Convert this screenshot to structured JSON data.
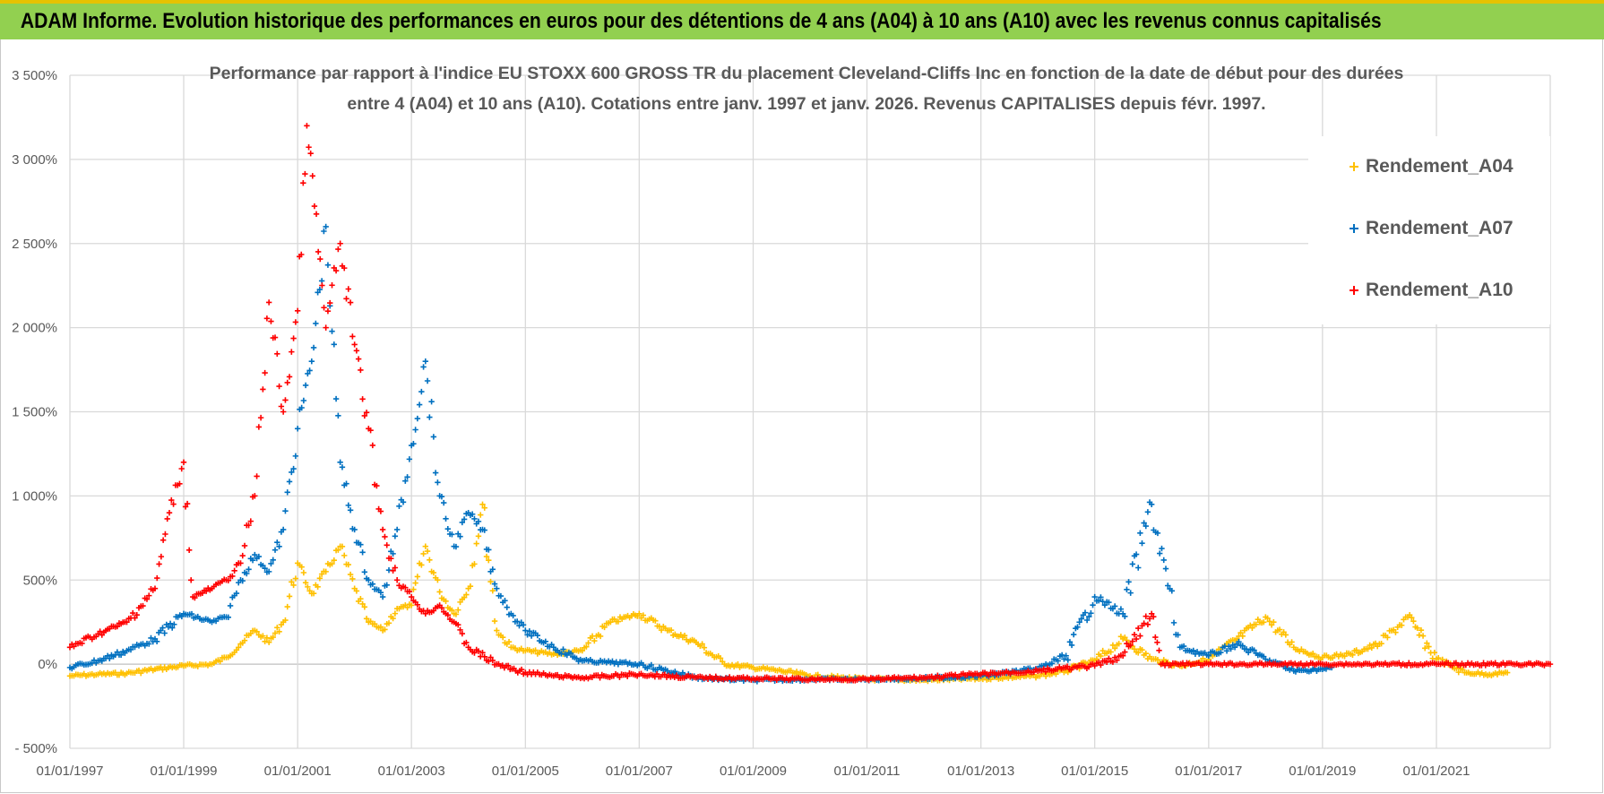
{
  "header": {
    "title": "ADAM Informe. Evolution historique des performances en euros pour des détentions de 4 ans (A04) à 10 ans (A10) avec les revenus connus capitalisés"
  },
  "chart_data": {
    "type": "scatter",
    "title_line1": "Performance par rapport à l'indice EU STOXX 600 GROSS TR  du placement Cleveland-Cliffs Inc en fonction de la date de début pour des durées",
    "title_line2": "entre 4 (A04) et 10 ans (A10).  Cotations entre janv. 1997 et janv. 2026. Revenus CAPITALISES depuis févr. 1997.",
    "x_axis": {
      "type": "date",
      "min": "1997-01-01",
      "max": "2023-01-01",
      "tick_labels": [
        "01/01/1997",
        "01/01/1999",
        "01/01/2001",
        "01/01/2003",
        "01/01/2005",
        "01/01/2007",
        "01/01/2009",
        "01/01/2011",
        "01/01/2013",
        "01/01/2015",
        "01/01/2017",
        "01/01/2019",
        "01/01/2021"
      ]
    },
    "y_axis": {
      "unit": "%",
      "min": -500,
      "max": 3500,
      "tick_labels": [
        "- 500%",
        "0%",
        "500%",
        "1 000%",
        "1 500%",
        "2 000%",
        "2 500%",
        "3 000%",
        "3 500%"
      ]
    },
    "grid": true,
    "legend_position": "top-right",
    "series": [
      {
        "name": "Rendement_A04",
        "color": "#ffc000",
        "points": [
          [
            "1997-01-01",
            -70
          ],
          [
            "1997-07-01",
            -60
          ],
          [
            "1998-01-01",
            -55
          ],
          [
            "1998-07-01",
            -30
          ],
          [
            "1999-01-01",
            -10
          ],
          [
            "1999-07-01",
            0
          ],
          [
            "1999-10-01",
            40
          ],
          [
            "2000-01-01",
            120
          ],
          [
            "2000-04-01",
            200
          ],
          [
            "2000-07-01",
            130
          ],
          [
            "2000-10-01",
            250
          ],
          [
            "2001-01-01",
            600
          ],
          [
            "2001-04-01",
            420
          ],
          [
            "2001-07-01",
            550
          ],
          [
            "2001-10-01",
            700
          ],
          [
            "2002-01-01",
            450
          ],
          [
            "2002-04-01",
            250
          ],
          [
            "2002-07-01",
            200
          ],
          [
            "2002-10-01",
            330
          ],
          [
            "2003-01-01",
            350
          ],
          [
            "2003-04-01",
            700
          ],
          [
            "2003-07-01",
            430
          ],
          [
            "2003-10-01",
            300
          ],
          [
            "2004-01-01",
            450
          ],
          [
            "2004-04-01",
            950
          ],
          [
            "2004-07-01",
            200
          ],
          [
            "2004-10-01",
            100
          ],
          [
            "2005-01-01",
            80
          ],
          [
            "2005-07-01",
            60
          ],
          [
            "2006-01-01",
            80
          ],
          [
            "2006-07-01",
            250
          ],
          [
            "2007-01-01",
            300
          ],
          [
            "2007-07-01",
            200
          ],
          [
            "2008-01-01",
            130
          ],
          [
            "2008-07-01",
            0
          ],
          [
            "2009-01-01",
            -20
          ],
          [
            "2009-07-01",
            -40
          ],
          [
            "2010-01-01",
            -70
          ],
          [
            "2011-01-01",
            -90
          ],
          [
            "2012-01-01",
            -95
          ],
          [
            "2013-01-01",
            -85
          ],
          [
            "2014-01-01",
            -70
          ],
          [
            "2014-07-01",
            -40
          ],
          [
            "2015-01-01",
            20
          ],
          [
            "2015-07-01",
            150
          ],
          [
            "2016-01-01",
            30
          ],
          [
            "2016-07-01",
            -10
          ],
          [
            "2017-01-01",
            30
          ],
          [
            "2017-07-01",
            150
          ],
          [
            "2018-01-01",
            280
          ],
          [
            "2018-07-01",
            100
          ],
          [
            "2019-01-01",
            40
          ],
          [
            "2019-07-01",
            60
          ],
          [
            "2020-01-01",
            120
          ],
          [
            "2020-07-01",
            280
          ],
          [
            "2021-01-01",
            30
          ],
          [
            "2021-07-01",
            -50
          ],
          [
            "2022-01-01",
            -60
          ],
          [
            "2022-04-01",
            -50
          ]
        ]
      },
      {
        "name": "Rendement_A07",
        "color": "#0070c0",
        "points": [
          [
            "1997-01-01",
            -20
          ],
          [
            "1997-07-01",
            20
          ],
          [
            "1998-01-01",
            80
          ],
          [
            "1998-07-01",
            150
          ],
          [
            "1999-01-01",
            300
          ],
          [
            "1999-07-01",
            250
          ],
          [
            "1999-10-01",
            280
          ],
          [
            "2000-01-01",
            500
          ],
          [
            "2000-04-01",
            650
          ],
          [
            "2000-07-01",
            550
          ],
          [
            "2000-10-01",
            800
          ],
          [
            "2001-01-01",
            1400
          ],
          [
            "2001-04-01",
            1800
          ],
          [
            "2001-07-01",
            2600
          ],
          [
            "2001-10-01",
            1200
          ],
          [
            "2002-01-01",
            800
          ],
          [
            "2002-04-01",
            500
          ],
          [
            "2002-07-01",
            400
          ],
          [
            "2002-10-01",
            800
          ],
          [
            "2003-01-01",
            1300
          ],
          [
            "2003-04-01",
            1800
          ],
          [
            "2003-07-01",
            1000
          ],
          [
            "2003-10-01",
            700
          ],
          [
            "2004-01-01",
            900
          ],
          [
            "2004-04-01",
            800
          ],
          [
            "2004-07-01",
            450
          ],
          [
            "2004-10-01",
            300
          ],
          [
            "2005-01-01",
            200
          ],
          [
            "2005-07-01",
            100
          ],
          [
            "2006-01-01",
            20
          ],
          [
            "2006-07-01",
            10
          ],
          [
            "2007-01-01",
            0
          ],
          [
            "2007-07-01",
            -40
          ],
          [
            "2008-01-01",
            -80
          ],
          [
            "2008-07-01",
            -90
          ],
          [
            "2009-01-01",
            -95
          ],
          [
            "2010-01-01",
            -90
          ],
          [
            "2011-01-01",
            -90
          ],
          [
            "2012-01-01",
            -85
          ],
          [
            "2013-01-01",
            -70
          ],
          [
            "2014-01-01",
            -30
          ],
          [
            "2014-07-01",
            50
          ],
          [
            "2015-01-01",
            400
          ],
          [
            "2015-07-01",
            300
          ],
          [
            "2016-01-01",
            950
          ],
          [
            "2016-07-01",
            100
          ],
          [
            "2017-01-01",
            50
          ],
          [
            "2017-07-01",
            120
          ],
          [
            "2018-01-01",
            30
          ],
          [
            "2018-07-01",
            -40
          ],
          [
            "2019-01-01",
            -30
          ],
          [
            "2019-03-01",
            -20
          ]
        ]
      },
      {
        "name": "Rendement_A10",
        "color": "#ff0000",
        "points": [
          [
            "1997-01-01",
            100
          ],
          [
            "1997-07-01",
            180
          ],
          [
            "1998-01-01",
            250
          ],
          [
            "1998-07-01",
            450
          ],
          [
            "1998-10-01",
            900
          ],
          [
            "1999-01-01",
            1200
          ],
          [
            "1999-03-01",
            400
          ],
          [
            "1999-07-01",
            450
          ],
          [
            "1999-10-01",
            500
          ],
          [
            "2000-01-01",
            600
          ],
          [
            "2000-04-01",
            1000
          ],
          [
            "2000-07-01",
            2150
          ],
          [
            "2000-10-01",
            1500
          ],
          [
            "2001-01-01",
            2100
          ],
          [
            "2001-03-01",
            3200
          ],
          [
            "2001-07-01",
            2000
          ],
          [
            "2001-10-01",
            2500
          ],
          [
            "2002-01-01",
            1900
          ],
          [
            "2002-04-01",
            1400
          ],
          [
            "2002-07-01",
            800
          ],
          [
            "2002-10-01",
            500
          ],
          [
            "2003-01-01",
            400
          ],
          [
            "2003-04-01",
            300
          ],
          [
            "2003-07-01",
            350
          ],
          [
            "2003-10-01",
            250
          ],
          [
            "2004-01-01",
            100
          ],
          [
            "2004-07-01",
            0
          ],
          [
            "2005-01-01",
            -50
          ],
          [
            "2005-07-01",
            -70
          ],
          [
            "2006-01-01",
            -80
          ],
          [
            "2007-01-01",
            -60
          ],
          [
            "2008-01-01",
            -80
          ],
          [
            "2009-01-01",
            -85
          ],
          [
            "2010-01-01",
            -90
          ],
          [
            "2011-01-01",
            -90
          ],
          [
            "2012-01-01",
            -80
          ],
          [
            "2013-01-01",
            -60
          ],
          [
            "2014-01-01",
            -40
          ],
          [
            "2015-01-01",
            -10
          ],
          [
            "2015-07-01",
            50
          ],
          [
            "2016-01-01",
            300
          ],
          [
            "2016-03-01",
            0
          ],
          [
            "2017-01-01",
            0
          ],
          [
            "2018-01-01",
            0
          ],
          [
            "2019-01-01",
            0
          ],
          [
            "2020-01-01",
            0
          ],
          [
            "2021-01-01",
            0
          ],
          [
            "2022-01-01",
            0
          ],
          [
            "2023-01-01",
            0
          ]
        ]
      }
    ]
  }
}
